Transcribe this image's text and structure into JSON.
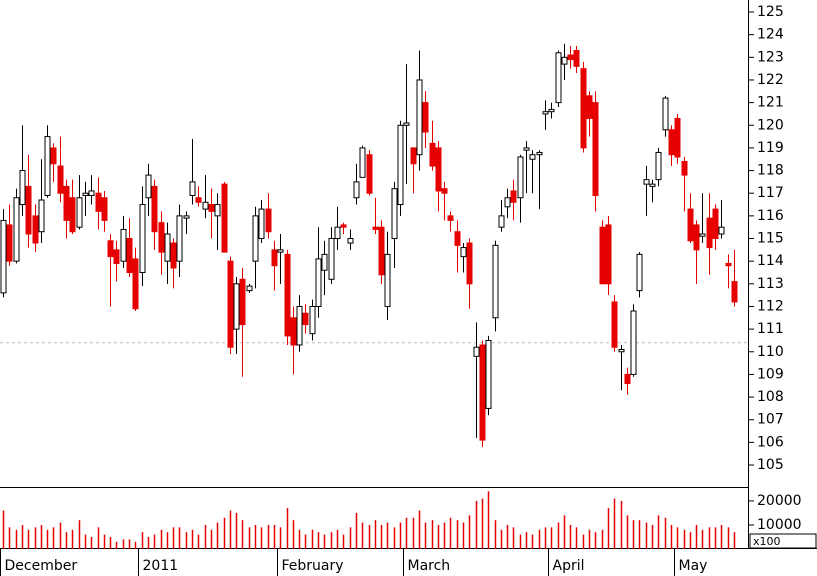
{
  "chart_data": {
    "type": "candlestick",
    "categories": [
      "December",
      null,
      null,
      null,
      null,
      null,
      null,
      null,
      null,
      null,
      null,
      null,
      null,
      null,
      null,
      null,
      null,
      null,
      null,
      null,
      null,
      null,
      "2011",
      null,
      null,
      null,
      null,
      null,
      null,
      null,
      null,
      null,
      null,
      null,
      null,
      null,
      null,
      null,
      null,
      null,
      null,
      null,
      null,
      null,
      "February",
      null,
      null,
      null,
      null,
      null,
      null,
      null,
      null,
      null,
      null,
      null,
      null,
      null,
      null,
      null,
      null,
      null,
      null,
      null,
      "March",
      null,
      null,
      null,
      null,
      null,
      null,
      null,
      null,
      null,
      null,
      null,
      null,
      null,
      null,
      null,
      null,
      null,
      null,
      null,
      null,
      null,
      null,
      "April",
      null,
      null,
      null,
      null,
      null,
      null,
      null,
      null,
      null,
      null,
      null,
      null,
      null,
      null,
      null,
      null,
      null,
      null,
      null,
      "May",
      null,
      null,
      null,
      null,
      null,
      null,
      null,
      null,
      null
    ],
    "open": [
      112.6,
      115.6,
      114.0,
      116.5,
      117.3,
      116.0,
      115.3,
      116.9,
      119.0,
      118.2,
      117.3,
      116.8,
      115.5,
      116.9,
      116.9,
      117.0,
      116.8,
      114.9,
      114.5,
      114.0,
      115.0,
      114.1,
      113.5,
      116.8,
      117.3,
      115.7,
      114.0,
      114.8,
      114.0,
      115.9,
      116.9,
      116.8,
      116.3,
      116.5,
      116.0,
      117.4,
      114.0,
      111.0,
      113.2,
      112.7,
      114.0,
      115.0,
      116.3,
      114.5,
      114.4,
      114.3,
      111.5,
      110.3,
      111.7,
      110.8,
      112.0,
      113.6,
      113.2,
      115.0,
      115.6,
      114.8,
      116.8,
      117.7,
      118.7,
      115.5,
      115.5,
      112.0,
      115.0,
      116.5,
      120.0,
      119.0,
      118.7,
      121.0,
      119.2,
      119.0,
      117.2,
      116.0,
      115.3,
      114.2,
      114.8,
      109.8,
      110.3,
      107.5,
      111.5,
      115.5,
      116.4,
      117.1,
      116.8,
      118.9,
      118.5,
      118.7,
      120.5,
      120.6,
      121.0,
      122.7,
      123.1,
      123.3,
      122.5,
      121.3,
      121.0,
      115.5,
      115.6,
      112.2,
      110.0,
      109.0,
      109.0,
      112.7,
      117.4,
      117.3,
      117.6,
      119.8,
      119.8,
      120.3,
      118.4,
      116.3,
      115.6,
      115.1,
      115.9,
      116.3,
      115.2,
      113.9,
      113.1
    ],
    "high": [
      116.3,
      116.5,
      117.2,
      120.0,
      118.7,
      116.5,
      118.5,
      120.0,
      119.2,
      119.5,
      117.6,
      117.6,
      117.8,
      117.5,
      117.8,
      117.7,
      117.1,
      115.2,
      114.9,
      116.0,
      115.9,
      114.6,
      117.3,
      118.3,
      117.6,
      116.2,
      115.7,
      115.0,
      116.5,
      116.2,
      119.4,
      117.3,
      117.8,
      117.2,
      117.0,
      117.5,
      114.2,
      113.3,
      113.7,
      113.0,
      116.4,
      116.7,
      117.0,
      114.9,
      115.2,
      114.5,
      112.0,
      112.5,
      112.1,
      112.3,
      115.5,
      114.9,
      115.5,
      116.4,
      115.7,
      115.4,
      118.3,
      119.1,
      118.9,
      116.8,
      115.8,
      115.3,
      117.5,
      120.2,
      122.7,
      119.0,
      123.3,
      121.5,
      120.2,
      119.3,
      117.5,
      116.2,
      115.8,
      114.8,
      115.0,
      111.3,
      110.5,
      110.7,
      114.9,
      116.7,
      117.2,
      117.6,
      118.7,
      119.3,
      118.9,
      118.9,
      121.1,
      121.0,
      123.3,
      123.6,
      123.5,
      123.5,
      122.8,
      121.5,
      121.5,
      115.8,
      116.0,
      112.5,
      110.3,
      109.3,
      112.1,
      114.4,
      118.2,
      117.6,
      119.0,
      121.3,
      120.0,
      120.5,
      118.6,
      117.0,
      115.8,
      117.0,
      117.0,
      116.5,
      116.7,
      114.3,
      114.5
    ],
    "low": [
      112.4,
      113.8,
      113.9,
      116.0,
      114.6,
      114.4,
      114.8,
      116.8,
      117.5,
      116.6,
      115.0,
      115.2,
      115.4,
      116.0,
      116.5,
      115.4,
      115.3,
      112.0,
      113.1,
      113.7,
      113.3,
      111.8,
      112.9,
      116.0,
      114.5,
      113.4,
      113.0,
      112.8,
      113.3,
      115.2,
      116.5,
      116.4,
      115.9,
      115.0,
      114.5,
      114.4,
      109.9,
      109.9,
      108.9,
      112.6,
      112.8,
      114.8,
      115.0,
      112.7,
      113.0,
      110.3,
      109.0,
      110.0,
      110.8,
      110.5,
      111.5,
      112.5,
      113.0,
      114.5,
      115.2,
      114.5,
      116.5,
      117.7,
      116.9,
      115.2,
      113.0,
      111.4,
      113.7,
      116.0,
      117.4,
      117.0,
      118.0,
      119.0,
      118.0,
      116.2,
      115.8,
      115.3,
      113.5,
      113.5,
      111.9,
      106.2,
      105.8,
      107.2,
      110.9,
      115.3,
      115.9,
      115.8,
      115.7,
      117.0,
      117.0,
      116.3,
      119.8,
      120.3,
      120.8,
      122.0,
      122.5,
      122.3,
      118.8,
      119.5,
      116.2,
      113.0,
      112.5,
      110.0,
      108.3,
      108.1,
      108.9,
      112.4,
      116.0,
      116.6,
      117.3,
      119.5,
      118.2,
      118.3,
      116.2,
      114.8,
      113.0,
      114.8,
      113.4,
      114.5,
      115.0,
      112.8,
      112.0
    ],
    "close": [
      115.8,
      114.0,
      116.8,
      118.0,
      115.2,
      114.8,
      116.7,
      119.5,
      118.3,
      117.0,
      115.8,
      115.3,
      116.8,
      117.0,
      117.1,
      116.2,
      115.8,
      114.2,
      113.9,
      115.4,
      113.5,
      111.9,
      116.5,
      117.8,
      115.3,
      114.4,
      115.2,
      113.7,
      116.0,
      116.0,
      117.5,
      116.6,
      116.6,
      116.2,
      116.5,
      114.4,
      110.2,
      113.0,
      111.2,
      112.9,
      116.0,
      116.3,
      115.3,
      113.8,
      114.5,
      110.7,
      110.3,
      112.0,
      111.2,
      112.0,
      114.1,
      114.3,
      115.0,
      115.5,
      115.5,
      115.0,
      117.5,
      119.0,
      117.0,
      115.4,
      113.4,
      114.3,
      117.2,
      120.0,
      120.1,
      118.3,
      122.0,
      119.7,
      118.2,
      117.1,
      117.0,
      115.8,
      114.7,
      114.6,
      113.0,
      110.2,
      106.1,
      110.5,
      114.7,
      116.0,
      116.8,
      116.6,
      118.6,
      119.0,
      118.7,
      118.8,
      120.6,
      120.7,
      123.2,
      123.0,
      122.9,
      122.6,
      119.0,
      120.3,
      116.9,
      113.0,
      113.0,
      110.2,
      110.1,
      108.6,
      111.8,
      114.3,
      117.6,
      117.4,
      118.8,
      121.2,
      118.7,
      118.6,
      117.8,
      114.9,
      114.5,
      115.2,
      114.6,
      115.0,
      115.5,
      113.8,
      112.2
    ],
    "ylim": [
      104.03,
      125.53
    ],
    "yticks": [
      105,
      106,
      107,
      108,
      109,
      110,
      111,
      112,
      113,
      114,
      115,
      116,
      117,
      118,
      119,
      120,
      121,
      122,
      123,
      124,
      125
    ],
    "up_color": "#ffffff",
    "down_color": "#e60000",
    "reference_line": 110.4,
    "volume": {
      "values": [
        16000,
        9000,
        8000,
        10000,
        8000,
        9000,
        10000,
        8000,
        9000,
        11000,
        7000,
        8000,
        12000,
        6000,
        5000,
        9000,
        6000,
        5000,
        3000,
        4000,
        4000,
        3000,
        7000,
        5000,
        6000,
        8000,
        7000,
        9000,
        9000,
        7000,
        8000,
        6000,
        10000,
        8000,
        11000,
        13000,
        16000,
        15000,
        12000,
        9000,
        10000,
        9000,
        10000,
        10000,
        9000,
        17000,
        12000,
        8000,
        6000,
        8000,
        7000,
        6000,
        7000,
        8000,
        6000,
        9000,
        15000,
        11000,
        10000,
        12000,
        10000,
        11000,
        9000,
        11000,
        13000,
        13000,
        16000,
        11000,
        12000,
        10000,
        11000,
        13000,
        12000,
        11000,
        14000,
        20000,
        21000,
        24000,
        12000,
        8000,
        10000,
        9000,
        6000,
        7000,
        6000,
        8000,
        9000,
        9000,
        11000,
        14000,
        10000,
        9000,
        6000,
        8000,
        7000,
        8000,
        17000,
        21000,
        20000,
        14000,
        12000,
        12000,
        11000,
        10000,
        14000,
        13000,
        10000,
        9000,
        8000,
        7000,
        10000,
        8000,
        9000,
        9000,
        10000,
        9000,
        7000
      ],
      "color": "#e60000",
      "ylim": [
        0,
        25800
      ],
      "yticks": [
        10000,
        20000
      ],
      "unit_label": "x100"
    }
  }
}
